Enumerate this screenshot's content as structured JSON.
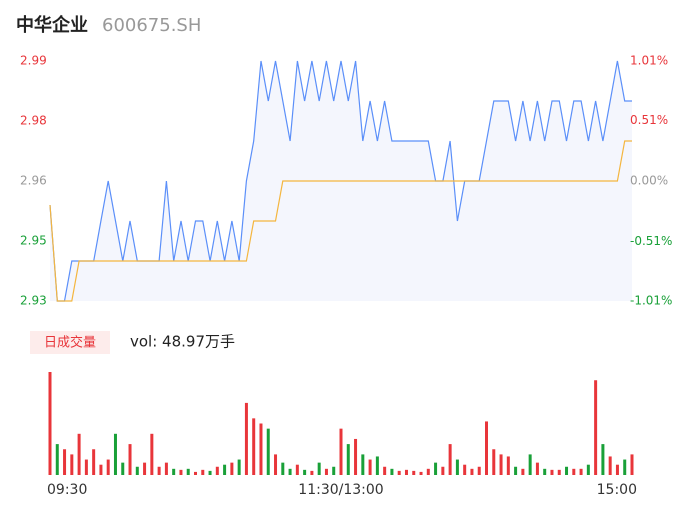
{
  "header": {
    "title": "中华企业",
    "code": "600675.SH"
  },
  "chart_data": [
    {
      "type": "line",
      "x": [
        0,
        3,
        6,
        9,
        12,
        15,
        18,
        21,
        24,
        27,
        30,
        33,
        36,
        39,
        42,
        45,
        48,
        51,
        54,
        57,
        60,
        63,
        66,
        69,
        72,
        75,
        78,
        81,
        84,
        87,
        90,
        93,
        96,
        99,
        102,
        105,
        108,
        111,
        114,
        117,
        120,
        123,
        126,
        129,
        132,
        135,
        138,
        141,
        144,
        147,
        150,
        153,
        156,
        159,
        162,
        165,
        168,
        171,
        174,
        177,
        180,
        183,
        186,
        189,
        192,
        195,
        198,
        201,
        204,
        207,
        210,
        213,
        216,
        219,
        222,
        225,
        228,
        231,
        234,
        237,
        240
      ],
      "series": [
        {
          "color": "#5b8ff9",
          "values": [
            2.954,
            2.93,
            2.93,
            2.94,
            2.94,
            2.94,
            2.94,
            2.95,
            2.96,
            2.95,
            2.94,
            2.95,
            2.94,
            2.94,
            2.94,
            2.94,
            2.96,
            2.94,
            2.95,
            2.94,
            2.95,
            2.95,
            2.94,
            2.95,
            2.94,
            2.95,
            2.94,
            2.96,
            2.97,
            2.99,
            2.98,
            2.99,
            2.98,
            2.97,
            2.99,
            2.98,
            2.99,
            2.98,
            2.99,
            2.98,
            2.99,
            2.98,
            2.99,
            2.97,
            2.98,
            2.97,
            2.98,
            2.97,
            2.97,
            2.97,
            2.97,
            2.97,
            2.97,
            2.96,
            2.96,
            2.97,
            2.95,
            2.96,
            2.96,
            2.96,
            2.97,
            2.98,
            2.98,
            2.98,
            2.97,
            2.98,
            2.97,
            2.98,
            2.97,
            2.98,
            2.98,
            2.97,
            2.98,
            2.98,
            2.97,
            2.98,
            2.97,
            2.98,
            2.99,
            2.98,
            2.98
          ]
        },
        {
          "color": "#f4b63f",
          "values": [
            2.954,
            2.93,
            2.93,
            2.93,
            2.94,
            2.94,
            2.94,
            2.94,
            2.94,
            2.94,
            2.94,
            2.94,
            2.94,
            2.94,
            2.94,
            2.94,
            2.94,
            2.94,
            2.94,
            2.94,
            2.94,
            2.94,
            2.94,
            2.94,
            2.94,
            2.94,
            2.94,
            2.94,
            2.95,
            2.95,
            2.95,
            2.95,
            2.96,
            2.96,
            2.96,
            2.96,
            2.96,
            2.96,
            2.96,
            2.96,
            2.96,
            2.96,
            2.96,
            2.96,
            2.96,
            2.96,
            2.96,
            2.96,
            2.96,
            2.96,
            2.96,
            2.96,
            2.96,
            2.96,
            2.96,
            2.96,
            2.96,
            2.96,
            2.96,
            2.96,
            2.96,
            2.96,
            2.96,
            2.96,
            2.96,
            2.96,
            2.96,
            2.96,
            2.96,
            2.96,
            2.96,
            2.96,
            2.96,
            2.96,
            2.96,
            2.96,
            2.96,
            2.96,
            2.96,
            2.97,
            2.97
          ]
        }
      ],
      "xlim": [
        0,
        240
      ],
      "xticks": [
        {
          "value": 0,
          "label": "09:30"
        },
        {
          "value": 120,
          "label": "11:30/13:00"
        },
        {
          "value": 240,
          "label": "15:00"
        }
      ],
      "ylim": [
        2.93,
        2.99
      ],
      "yticks": [
        2.93,
        {
          "value": 2.945,
          "label": "2.95"
        },
        2.96,
        {
          "value": 2.975,
          "label": "2.98"
        },
        2.99
      ],
      "y2lim": [
        -1.01,
        1.01
      ],
      "y2ticks": [
        {
          "value": -1.01,
          "label": "-1.01%"
        },
        {
          "value": -0.51,
          "label": "-0.51%"
        },
        {
          "value": 0,
          "label": "0.00%"
        },
        {
          "value": 0.51,
          "label": "0.51%"
        },
        {
          "value": 1.01,
          "label": "1.01%"
        }
      ],
      "up_color": "#e8353a",
      "down_color": "#19a038",
      "flat_color": "#999999",
      "area_color": "#f4f6fd"
    },
    {
      "type": "bar",
      "title": "日成交量",
      "subtitle": "vol: 48.97万手",
      "values": [
        100,
        30,
        25,
        20,
        40,
        15,
        25,
        10,
        15,
        40,
        12,
        30,
        8,
        12,
        40,
        8,
        12,
        6,
        5,
        6,
        3,
        5,
        4,
        8,
        10,
        12,
        15,
        70,
        55,
        50,
        45,
        20,
        12,
        6,
        10,
        5,
        4,
        12,
        6,
        8,
        45,
        30,
        35,
        20,
        15,
        18,
        8,
        6,
        4,
        5,
        4,
        3,
        6,
        12,
        8,
        30,
        15,
        10,
        6,
        8,
        52,
        25,
        20,
        18,
        8,
        6,
        20,
        12,
        6,
        5,
        5,
        8,
        6,
        6,
        10,
        92,
        30,
        18,
        10,
        15,
        20
      ],
      "ylim": [
        0,
        100
      ]
    }
  ]
}
